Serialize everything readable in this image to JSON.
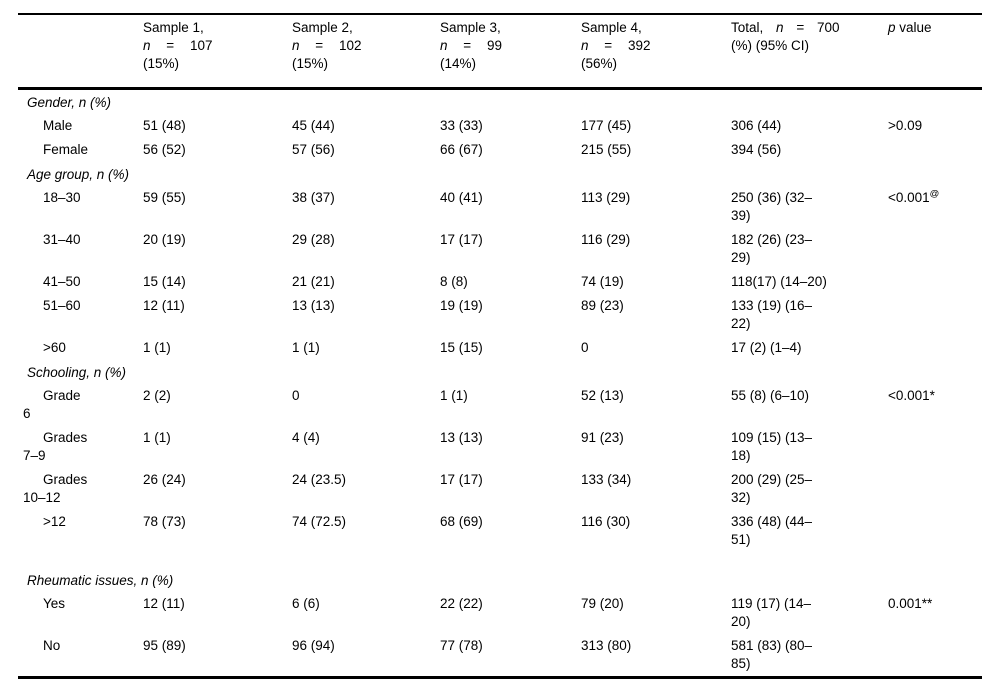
{
  "page": {
    "background_color": "#ffffff",
    "text_color": "#000000",
    "rule_color": "#000000"
  },
  "table": {
    "header": {
      "stub": "",
      "samples": [
        {
          "title": "Sample 1,",
          "n_symbol": "n",
          "equals": "=",
          "count": "107",
          "percent": "(15%)"
        },
        {
          "title": "Sample 2,",
          "n_symbol": "n",
          "equals": "=",
          "count": "102",
          "percent": "(15%)"
        },
        {
          "title": "Sample 3,",
          "n_symbol": "n",
          "equals": "=",
          "count": "99",
          "percent": "(14%)"
        },
        {
          "title": "Sample 4,",
          "n_symbol": "n",
          "equals": "=",
          "count": "392",
          "percent": "(56%)"
        }
      ],
      "total": {
        "title": "Total,",
        "n_symbol": "n",
        "equals": "=",
        "count": "700",
        "line2": "(%) (95% CI)"
      },
      "p": {
        "symbol": "p",
        "rest": "value"
      }
    },
    "sections": [
      {
        "header": "Gender, n (%)",
        "spacer_before": false,
        "rows": [
          {
            "label": "Male",
            "values": [
              "51 (48)",
              "45 (44)",
              "33 (33)",
              "177 (45)",
              "306 (44)"
            ],
            "p": ">0.09",
            "p_sup": ""
          },
          {
            "label": "Female",
            "values": [
              "56 (52)",
              "57 (56)",
              "66 (67)",
              "215 (55)",
              "394 (56)"
            ],
            "p": "",
            "p_sup": ""
          }
        ]
      },
      {
        "header": "Age group, n (%)",
        "spacer_before": false,
        "rows": [
          {
            "label": "18–30",
            "values": [
              "59 (55)",
              "38 (37)",
              "40 (41)",
              "113 (29)",
              "250 (36) (32–\n39)"
            ],
            "p": "<0.001",
            "p_sup": "@"
          },
          {
            "label": "31–40",
            "values": [
              "20 (19)",
              "29 (28)",
              "17 (17)",
              "116 (29)",
              "182 (26) (23–\n29)"
            ],
            "p": "",
            "p_sup": ""
          },
          {
            "label": "41–50",
            "values": [
              "15 (14)",
              "21 (21)",
              "8 (8)",
              "74 (19)",
              "118(17) (14–20)"
            ],
            "p": "",
            "p_sup": ""
          },
          {
            "label": "51–60",
            "values": [
              "12 (11)",
              "13 (13)",
              "19 (19)",
              "89 (23)",
              "133 (19) (16–\n22)"
            ],
            "p": "",
            "p_sup": ""
          },
          {
            "label": ">60",
            "values": [
              "1 (1)",
              "1 (1)",
              "15 (15)",
              "0",
              "17 (2) (1–4)"
            ],
            "p": "",
            "p_sup": ""
          }
        ]
      },
      {
        "header": "Schooling, n (%)",
        "spacer_before": false,
        "rows": [
          {
            "label": "Grade\n6",
            "values": [
              "2 (2)",
              "0",
              "1 (1)",
              "52 (13)",
              "55 (8) (6–10)"
            ],
            "p": "<0.001*",
            "p_sup": ""
          },
          {
            "label": "Grades\n7–9",
            "values": [
              "1 (1)",
              "4 (4)",
              "13 (13)",
              "91 (23)",
              "109 (15) (13–\n18)"
            ],
            "p": "",
            "p_sup": ""
          },
          {
            "label": "Grades\n10–12",
            "values": [
              "26 (24)",
              "24 (23.5)",
              "17 (17)",
              "133 (34)",
              "200 (29) (25–\n32)"
            ],
            "p": "",
            "p_sup": ""
          },
          {
            "label": ">12",
            "values": [
              "78 (73)",
              "74 (72.5)",
              "68 (69)",
              "116 (30)",
              "336 (48) (44–\n51)"
            ],
            "p": "",
            "p_sup": ""
          }
        ]
      },
      {
        "header": "Rheumatic issues, n (%)",
        "spacer_before": true,
        "rows": [
          {
            "label": "Yes",
            "values": [
              "12 (11)",
              "6 (6)",
              "22 (22)",
              "79 (20)",
              "119 (17) (14–\n20)"
            ],
            "p": "0.001**",
            "p_sup": ""
          },
          {
            "label": "No",
            "values": [
              "95 (89)",
              "96 (94)",
              "77 (78)",
              "313 (80)",
              "581 (83) (80–\n85)"
            ],
            "p": "",
            "p_sup": ""
          }
        ]
      }
    ]
  }
}
